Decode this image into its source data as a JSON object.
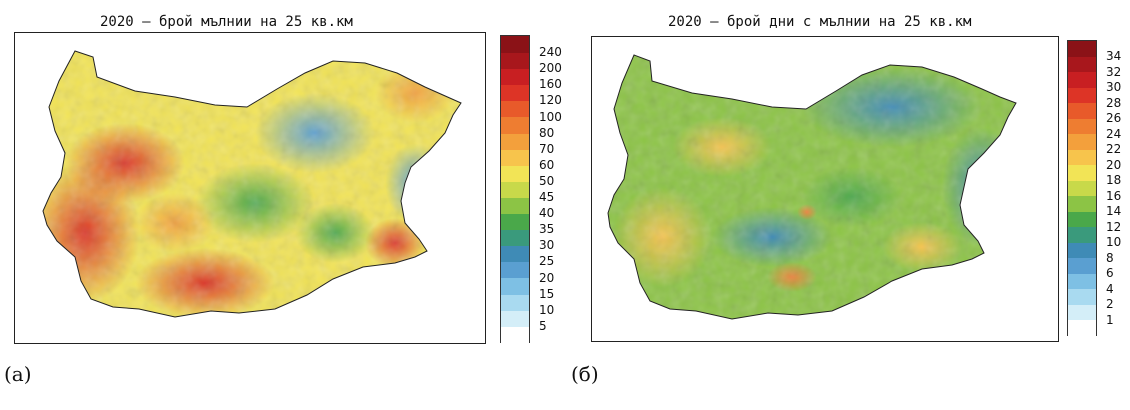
{
  "panel_a": {
    "title": "2020 – брой мълнии на 25 кв.км",
    "caption": "(a)",
    "legend": {
      "ticks": [
        "5",
        "10",
        "15",
        "20",
        "25",
        "30",
        "35",
        "40",
        "45",
        "50",
        "60",
        "70",
        "80",
        "100",
        "120",
        "160",
        "200",
        "240"
      ],
      "colors": [
        "#ffffff",
        "#d4eef8",
        "#a9daf0",
        "#7ec0e4",
        "#5a9fd1",
        "#3f8bb6",
        "#3a9a7c",
        "#4aa84a",
        "#8cc445",
        "#c8d94a",
        "#f2e456",
        "#f7c44c",
        "#f3a03c",
        "#ee7d31",
        "#e85a2a",
        "#dd3426",
        "#c81f22",
        "#a8171c",
        "#8b1217"
      ]
    }
  },
  "panel_b": {
    "title": "2020 – брой дни с мълнии на 25 кв.км",
    "caption": "(б)",
    "legend": {
      "ticks": [
        "1",
        "2",
        "4",
        "6",
        "8",
        "10",
        "12",
        "14",
        "16",
        "18",
        "20",
        "22",
        "24",
        "26",
        "28",
        "30",
        "32",
        "34"
      ],
      "colors": [
        "#ffffff",
        "#d4eef8",
        "#a9daf0",
        "#7ec0e4",
        "#5a9fd1",
        "#3f8bb6",
        "#3a9a7c",
        "#4aa84a",
        "#8cc445",
        "#c8d94a",
        "#f2e456",
        "#f7c44c",
        "#f3a03c",
        "#ee7d31",
        "#e85a2a",
        "#dd3426",
        "#c81f22",
        "#a8171c",
        "#8b1217"
      ]
    }
  }
}
